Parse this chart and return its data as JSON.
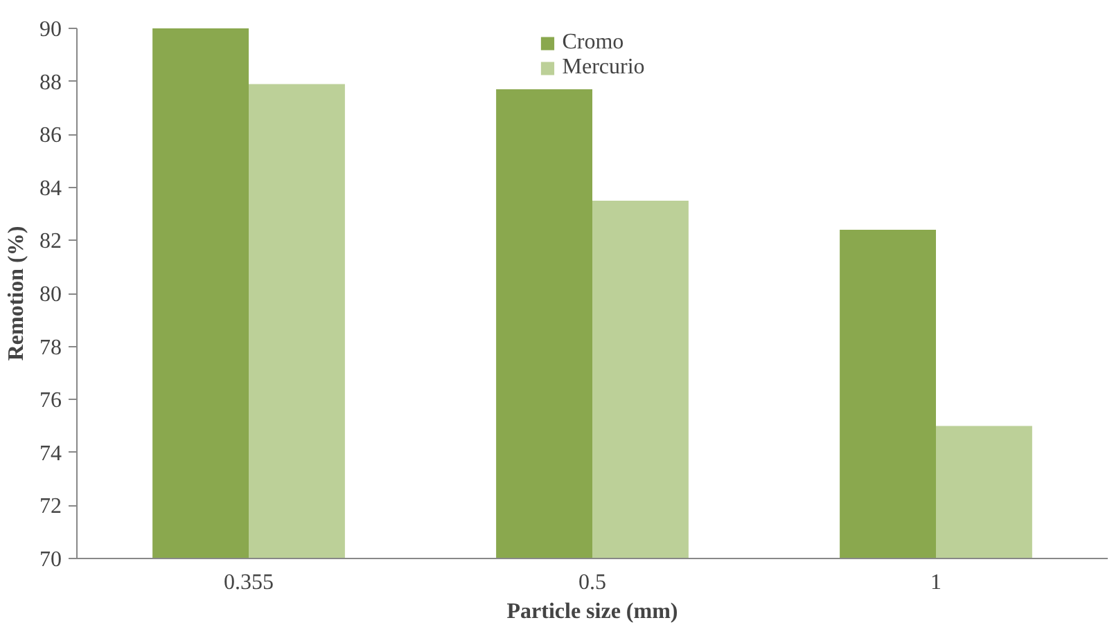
{
  "chart_data": {
    "type": "bar",
    "xlabel": "Particle size (mm)",
    "ylabel": "Remotion (%)",
    "categories": [
      "0.355",
      "0.5",
      "1"
    ],
    "series": [
      {
        "name": "Cromo",
        "color": "#8aa84e",
        "values": [
          90,
          87.7,
          82.4
        ]
      },
      {
        "name": "Mercurio",
        "color": "#bcd098",
        "values": [
          87.9,
          83.5,
          75.0
        ]
      }
    ],
    "ylim": [
      70,
      90
    ],
    "yticks": [
      70,
      72,
      74,
      76,
      78,
      80,
      82,
      84,
      86,
      88,
      90
    ],
    "grid": false,
    "legend": "top"
  }
}
